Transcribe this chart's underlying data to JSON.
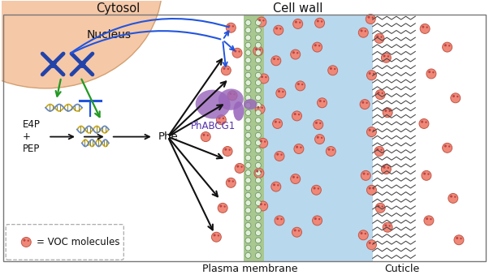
{
  "bg_color": "#ffffff",
  "nucleus_color": "#f5c8a8",
  "nucleus_border": "#d4a070",
  "cell_wall_color_left": "#b8d8ee",
  "cell_wall_color_right": "#daeef8",
  "cuticle_bg": "#ffffff",
  "membrane_green_bg": "#a8c890",
  "membrane_dot_fill": "#e0f0d8",
  "membrane_dot_edge": "#608858",
  "voc_fill": "#f08878",
  "voc_edge": "#c05848",
  "chrom_color": "#2244aa",
  "arrow_green": "#229922",
  "arrow_blue": "#2255dd",
  "arrow_black": "#111111",
  "inh_color": "#2255dd",
  "mrna_gold": "#ccaa22",
  "mrna_blue": "#6688cc",
  "phabcg1_color": "#9966bb",
  "text_color": "#111111",
  "legend_border": "#aaaaaa",
  "label_nucleus": "Nucleus",
  "label_cytosol": "Cytosol",
  "label_cellwall": "Cell wall",
  "label_plasmamem": "Plasma membrane",
  "label_cuticle": "Cuticle",
  "label_e4p": "E4P\n+\nPEP",
  "label_phe": "Phe",
  "label_phabcg1": "PhABCG1",
  "label_voc": "= VOC molecules",
  "figsize": [
    6.02,
    3.39
  ],
  "dpi": 100
}
